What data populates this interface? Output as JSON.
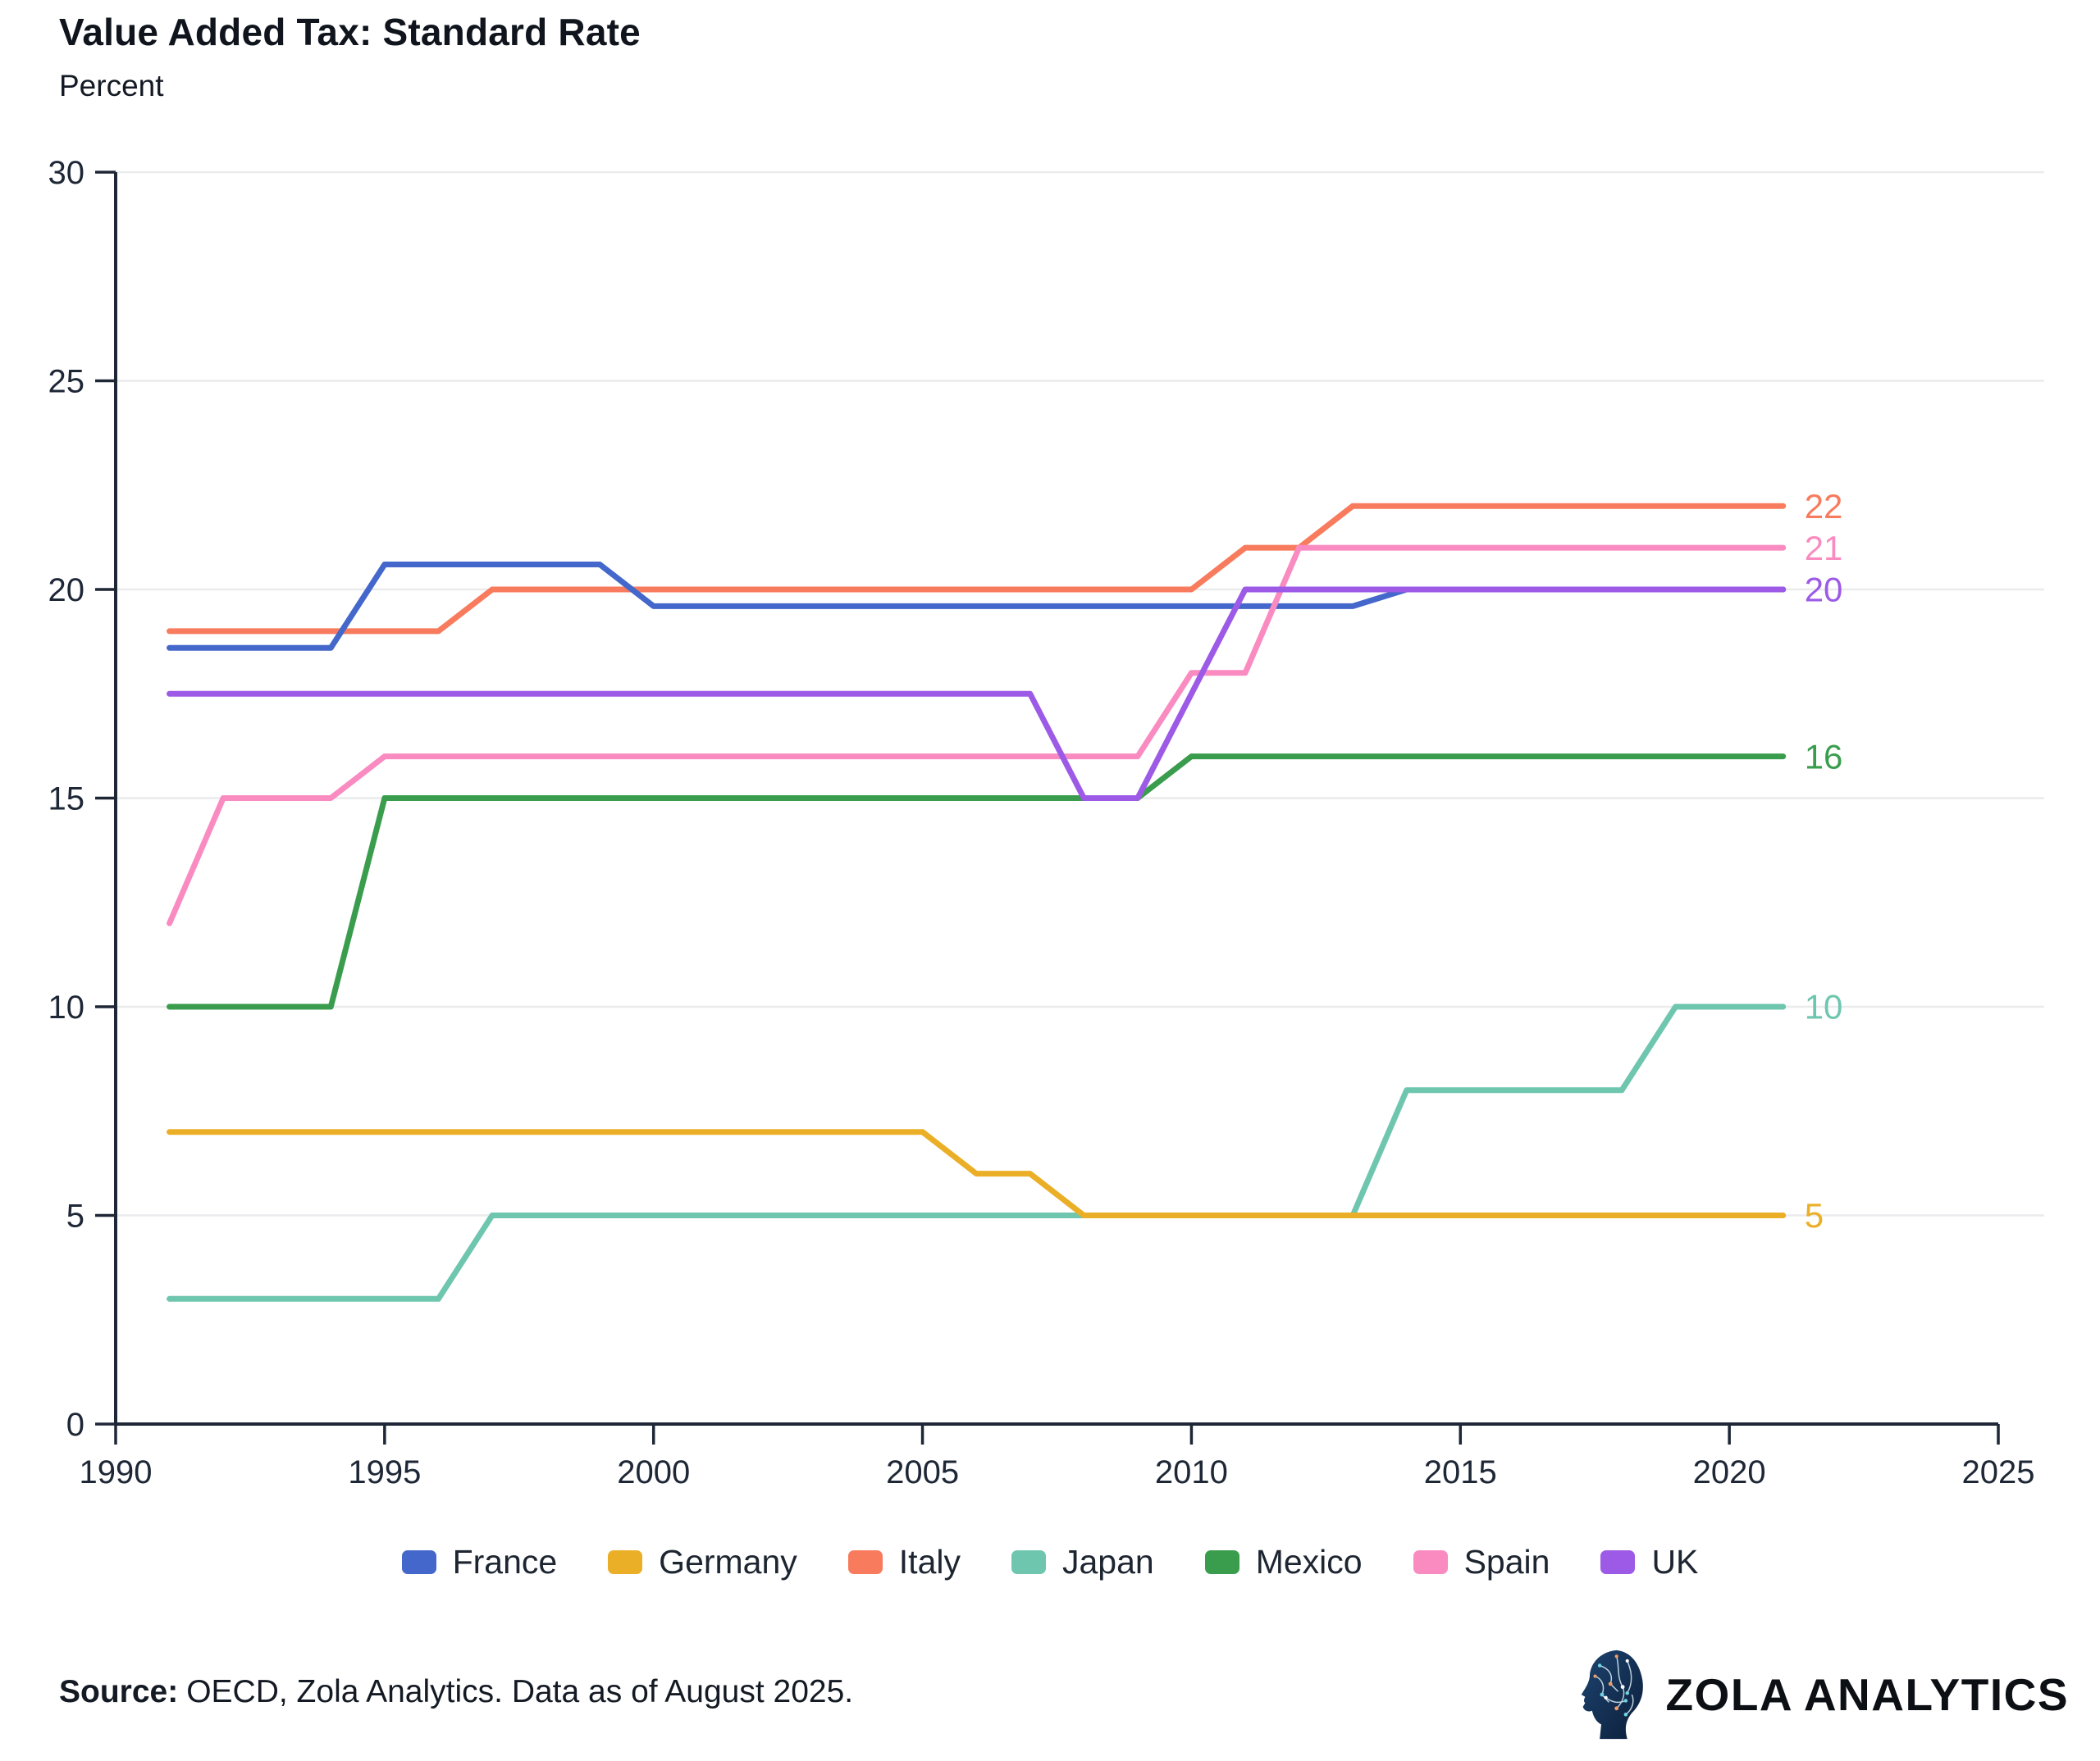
{
  "header": {
    "title": "Value Added Tax: Standard Rate",
    "subtitle": "Percent"
  },
  "footer": {
    "source_label": "Source:",
    "source_text": "OECD, Zola Analytics. Data as of August 2025.",
    "brand_name": "ZOLA ANALYTICS",
    "brand_icon": "circuit-head-icon"
  },
  "chart_data": {
    "type": "line",
    "title": "Value Added Tax: Standard Rate",
    "ylabel": "Percent",
    "x_range": [
      1990,
      2025
    ],
    "y_range": [
      0,
      30
    ],
    "x_ticks": [
      "1990",
      "1995",
      "2000",
      "2005",
      "2010",
      "2015",
      "2020",
      "2025"
    ],
    "y_ticks": [
      "0",
      "5",
      "10",
      "15",
      "20",
      "25",
      "30"
    ],
    "grid": "horizontal-only",
    "legend_position": "bottom",
    "years": [
      1991,
      1992,
      1993,
      1994,
      1995,
      1996,
      1997,
      1998,
      1999,
      2000,
      2001,
      2002,
      2003,
      2004,
      2005,
      2006,
      2007,
      2008,
      2009,
      2010,
      2011,
      2012,
      2013,
      2014,
      2015,
      2016,
      2017,
      2018,
      2019,
      2020,
      2021
    ],
    "series": [
      {
        "name": "France",
        "color": "#4467CB",
        "end_label": null,
        "values": [
          18.6,
          18.6,
          18.6,
          18.6,
          20.6,
          20.6,
          20.6,
          20.6,
          20.6,
          19.6,
          19.6,
          19.6,
          19.6,
          19.6,
          19.6,
          19.6,
          19.6,
          19.6,
          19.6,
          19.6,
          19.6,
          19.6,
          19.6,
          20,
          20,
          20,
          20,
          20,
          20,
          20,
          20
        ]
      },
      {
        "name": "Germany",
        "color": "#EBAF27",
        "end_label": "5",
        "values": [
          7,
          7,
          7,
          7,
          7,
          7,
          7,
          7,
          7,
          7,
          7,
          7,
          7,
          7,
          7,
          6,
          6,
          5,
          5,
          5,
          5,
          5,
          5,
          5,
          5,
          5,
          5,
          5,
          5,
          5,
          5
        ]
      },
      {
        "name": "Italy",
        "color": "#F87B5D",
        "end_label": "22",
        "values": [
          19,
          19,
          19,
          19,
          19,
          19,
          20,
          20,
          20,
          20,
          20,
          20,
          20,
          20,
          20,
          20,
          20,
          20,
          20,
          20,
          21,
          21,
          22,
          22,
          22,
          22,
          22,
          22,
          22,
          22,
          22
        ]
      },
      {
        "name": "Japan",
        "color": "#6FC6AF",
        "end_label": "10",
        "values": [
          3,
          3,
          3,
          3,
          3,
          3,
          5,
          5,
          5,
          5,
          5,
          5,
          5,
          5,
          5,
          5,
          5,
          5,
          5,
          5,
          5,
          5,
          5,
          8,
          8,
          8,
          8,
          8,
          10,
          10,
          10
        ]
      },
      {
        "name": "Mexico",
        "color": "#3A9D4D",
        "end_label": "16",
        "values": [
          10,
          10,
          10,
          10,
          15,
          15,
          15,
          15,
          15,
          15,
          15,
          15,
          15,
          15,
          15,
          15,
          15,
          15,
          15,
          16,
          16,
          16,
          16,
          16,
          16,
          16,
          16,
          16,
          16,
          16,
          16
        ]
      },
      {
        "name": "Spain",
        "color": "#F98BC1",
        "end_label": "21",
        "values": [
          12,
          15,
          15,
          15,
          16,
          16,
          16,
          16,
          16,
          16,
          16,
          16,
          16,
          16,
          16,
          16,
          16,
          16,
          16,
          18,
          18,
          21,
          21,
          21,
          21,
          21,
          21,
          21,
          21,
          21,
          21
        ]
      },
      {
        "name": "UK",
        "color": "#9C5AE6",
        "end_label": "20",
        "values": [
          17.5,
          17.5,
          17.5,
          17.5,
          17.5,
          17.5,
          17.5,
          17.5,
          17.5,
          17.5,
          17.5,
          17.5,
          17.5,
          17.5,
          17.5,
          17.5,
          17.5,
          15,
          15,
          17.5,
          20,
          20,
          20,
          20,
          20,
          20,
          20,
          20,
          20,
          20,
          20
        ]
      }
    ],
    "draw_order": [
      "Italy",
      "France",
      "Japan",
      "Germany",
      "Mexico",
      "Spain",
      "UK"
    ]
  }
}
